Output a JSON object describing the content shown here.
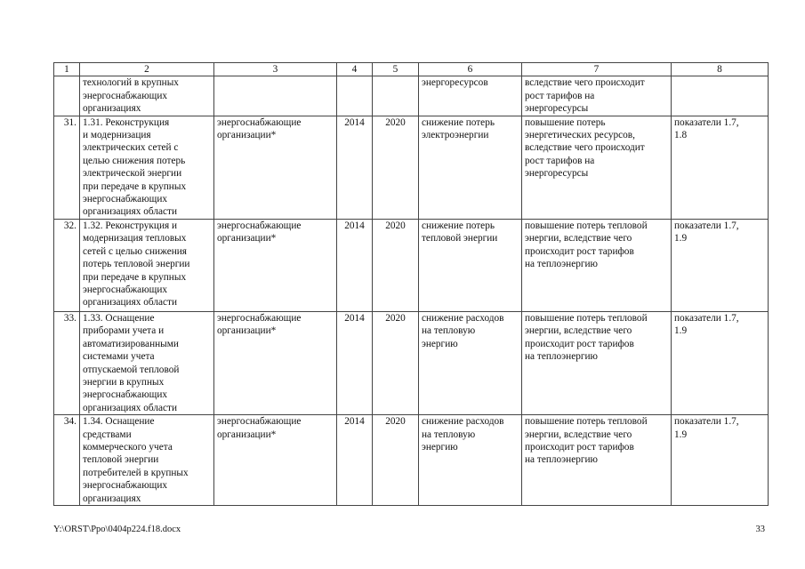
{
  "table": {
    "headers": [
      "1",
      "2",
      "3",
      "4",
      "5",
      "6",
      "7",
      "8"
    ],
    "rows": [
      {
        "n": "",
        "name": "технологий в крупных\nэнергоснабжающих\nорганизациях",
        "exec": "",
        "start": "",
        "end": "",
        "result": "энергоресурсов",
        "risk": "вследствие чего происходит\nрост тарифов на\nэнергоресурсы",
        "link": ""
      },
      {
        "n": "31.",
        "name": "1.31. Реконструкция\nи модернизация\nэлектрических сетей с\nцелью снижения потерь\nэлектрической энергии\nпри передаче в крупных\nэнергоснабжающих\nорганизациях области",
        "exec": "энергоснабжающие\nорганизации*",
        "start": "2014",
        "end": "2020",
        "result": "снижение потерь\nэлектроэнергии",
        "risk": "повышение потерь\nэнергетических ресурсов,\nвследствие чего происходит\nрост тарифов на\nэнергоресурсы",
        "link": "показатели 1.7,\n1.8"
      },
      {
        "n": "32.",
        "name": "1.32. Реконструкция и\nмодернизация тепловых\nсетей с целью снижения\nпотерь тепловой энергии\nпри передаче в крупных\nэнергоснабжающих\nорганизациях области",
        "exec": "энергоснабжающие\nорганизации*",
        "start": "2014",
        "end": "2020",
        "result": "снижение потерь\nтепловой энергии",
        "risk": "повышение потерь тепловой\nэнергии, вследствие чего\nпроисходит рост тарифов\nна теплоэнергию",
        "link": "показатели 1.7,\n1.9"
      },
      {
        "n": "33.",
        "name": "1.33. Оснащение\nприборами учета и\nавтоматизированными\nсистемами учета\nотпускаемой тепловой\nэнергии в крупных\nэнергоснабжающих\nорганизациях области",
        "exec": "энергоснабжающие\nорганизации*",
        "start": "2014",
        "end": "2020",
        "result": "снижение расходов\nна тепловую\nэнергию",
        "risk": "повышение потерь тепловой\nэнергии, вследствие чего\nпроисходит рост тарифов\nна теплоэнергию",
        "link": "показатели 1.7,\n1.9"
      },
      {
        "n": "34.",
        "name": "1.34. Оснащение\nсредствами\nкоммерческого учета\nтепловой энергии\nпотребителей в крупных\nэнергоснабжающих\nорганизациях",
        "exec": "энергоснабжающие\nорганизации*",
        "start": "2014",
        "end": "2020",
        "result": "снижение расходов\nна тепловую\nэнергию",
        "risk": "повышение потерь тепловой\nэнергии, вследствие чего\nпроисходит рост тарифов\nна теплоэнергию",
        "link": "показатели 1.7,\n1.9"
      }
    ]
  },
  "footer": {
    "file_path": "Y:\\ORST\\Ppo\\0404p224.f18.docx",
    "page_number": "33"
  }
}
